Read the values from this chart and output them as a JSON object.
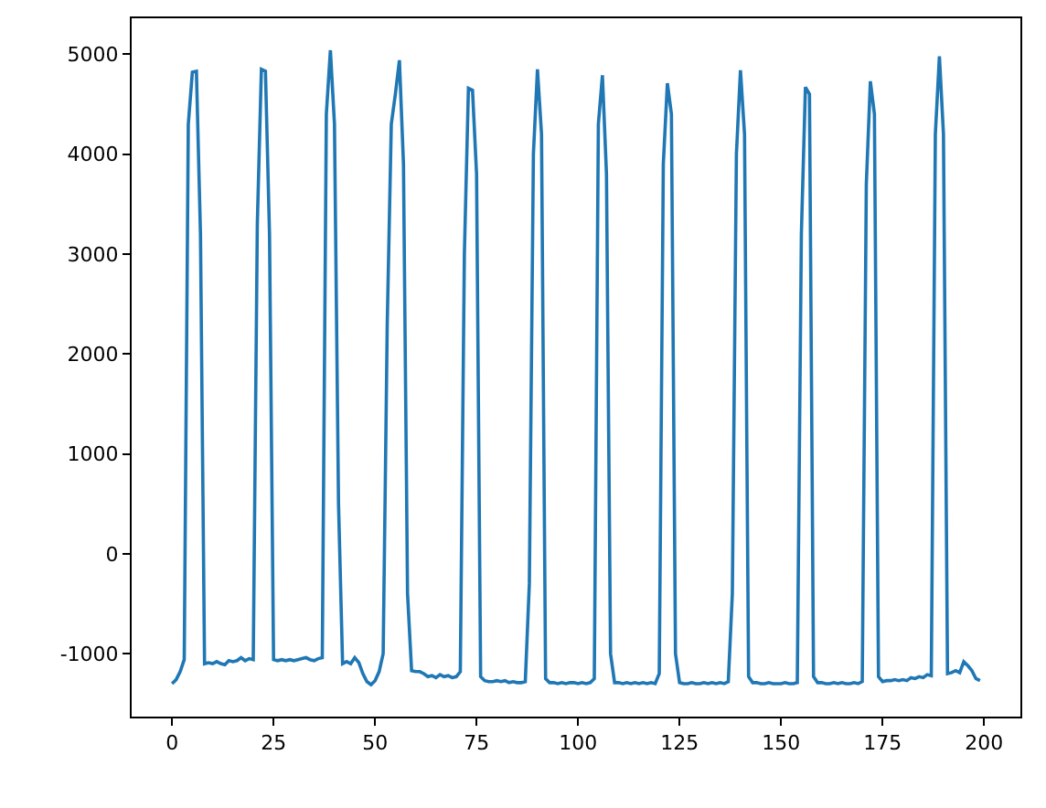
{
  "chart_data": {
    "type": "line",
    "x": [
      0,
      1,
      2,
      3,
      4,
      5,
      6,
      7,
      8,
      9,
      10,
      11,
      12,
      13,
      14,
      15,
      16,
      17,
      18,
      19,
      20,
      21,
      22,
      23,
      24,
      25,
      26,
      27,
      28,
      29,
      30,
      31,
      32,
      33,
      34,
      35,
      36,
      37,
      38,
      39,
      40,
      41,
      42,
      43,
      44,
      45,
      46,
      47,
      48,
      49,
      50,
      51,
      52,
      53,
      54,
      55,
      56,
      57,
      58,
      59,
      60,
      61,
      62,
      63,
      64,
      65,
      66,
      67,
      68,
      69,
      70,
      71,
      72,
      73,
      74,
      75,
      76,
      77,
      78,
      79,
      80,
      81,
      82,
      83,
      84,
      85,
      86,
      87,
      88,
      89,
      90,
      91,
      92,
      93,
      94,
      95,
      96,
      97,
      98,
      99,
      100,
      101,
      102,
      103,
      104,
      105,
      106,
      107,
      108,
      109,
      110,
      111,
      112,
      113,
      114,
      115,
      116,
      117,
      118,
      119,
      120,
      121,
      122,
      123,
      124,
      125,
      126,
      127,
      128,
      129,
      130,
      131,
      132,
      133,
      134,
      135,
      136,
      137,
      138,
      139,
      140,
      141,
      142,
      143,
      144,
      145,
      146,
      147,
      148,
      149,
      150,
      151,
      152,
      153,
      154,
      155,
      156,
      157,
      158,
      159,
      160,
      161,
      162,
      163,
      164,
      165,
      166,
      167,
      168,
      169,
      170,
      171,
      172,
      173,
      174,
      175,
      176,
      177,
      178,
      179,
      180,
      181,
      182,
      183,
      184,
      185,
      186,
      187,
      188,
      189,
      190,
      191,
      192,
      193,
      194,
      195,
      196,
      197,
      198,
      199
    ],
    "series": [
      {
        "color": "#1f77b4",
        "values": [
          -1300,
          -1260,
          -1180,
          -1060,
          4300,
          4820,
          4830,
          3200,
          -1100,
          -1090,
          -1100,
          -1080,
          -1100,
          -1110,
          -1070,
          -1080,
          -1070,
          -1040,
          -1070,
          -1050,
          -1060,
          3300,
          4850,
          4830,
          3200,
          -1060,
          -1070,
          -1060,
          -1070,
          -1060,
          -1070,
          -1060,
          -1050,
          -1040,
          -1060,
          -1070,
          -1050,
          -1040,
          4400,
          5040,
          4300,
          500,
          -1100,
          -1080,
          -1100,
          -1040,
          -1090,
          -1200,
          -1280,
          -1310,
          -1270,
          -1180,
          -1000,
          2300,
          4300,
          4600,
          4940,
          3900,
          -400,
          -1170,
          -1180,
          -1180,
          -1200,
          -1230,
          -1220,
          -1240,
          -1210,
          -1230,
          -1220,
          -1240,
          -1230,
          -1180,
          3000,
          4660,
          4640,
          3800,
          -1230,
          -1270,
          -1280,
          -1280,
          -1270,
          -1280,
          -1270,
          -1290,
          -1280,
          -1290,
          -1290,
          -1280,
          -300,
          4000,
          4850,
          4200,
          -1250,
          -1290,
          -1290,
          -1300,
          -1290,
          -1300,
          -1290,
          -1290,
          -1300,
          -1290,
          -1300,
          -1290,
          -1250,
          4300,
          4790,
          3800,
          -1000,
          -1290,
          -1290,
          -1300,
          -1290,
          -1300,
          -1290,
          -1300,
          -1290,
          -1300,
          -1290,
          -1300,
          -1200,
          3900,
          4710,
          4400,
          -1000,
          -1290,
          -1300,
          -1300,
          -1290,
          -1300,
          -1300,
          -1290,
          -1300,
          -1290,
          -1300,
          -1290,
          -1300,
          -1280,
          -400,
          4000,
          4840,
          4200,
          -1230,
          -1290,
          -1290,
          -1300,
          -1300,
          -1290,
          -1300,
          -1300,
          -1300,
          -1290,
          -1300,
          -1300,
          -1290,
          3200,
          4670,
          4600,
          -1230,
          -1290,
          -1290,
          -1300,
          -1300,
          -1290,
          -1300,
          -1290,
          -1300,
          -1300,
          -1290,
          -1300,
          -1280,
          3700,
          4730,
          4400,
          -1230,
          -1280,
          -1270,
          -1270,
          -1260,
          -1270,
          -1260,
          -1270,
          -1240,
          -1250,
          -1230,
          -1240,
          -1210,
          -1220,
          4200,
          4980,
          4200,
          -1200,
          -1190,
          -1170,
          -1190,
          -1080,
          -1120,
          -1170,
          -1250,
          -1270
        ]
      }
    ],
    "xlim": [
      -9.95,
      208.95
    ],
    "ylim": [
      -1630,
      5360
    ],
    "xticks": [
      0,
      25,
      50,
      75,
      100,
      125,
      150,
      175,
      200
    ],
    "yticks": [
      -1000,
      0,
      1000,
      2000,
      3000,
      4000,
      5000
    ],
    "tick_labels": true
  }
}
